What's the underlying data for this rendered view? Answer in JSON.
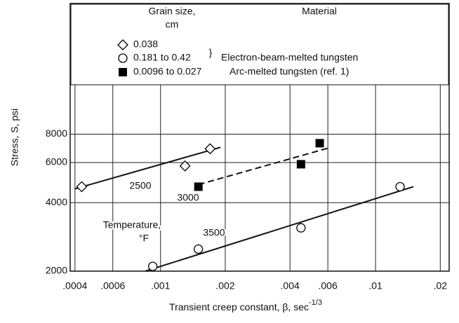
{
  "chart_data": {
    "type": "scatter",
    "x_label": "Transient creep constant, β, sec",
    "x_label_exponent": "-1/3",
    "y_label": "Stress, S, psi",
    "log_x": true,
    "log_y": true,
    "grid": true,
    "xlim": [
      0.00038,
      0.022
    ],
    "ylim": [
      2000,
      30000
    ],
    "xticks": [
      {
        "value": 0.0004,
        "label": ".0004"
      },
      {
        "value": 0.0006,
        "label": ".0006"
      },
      {
        "value": 0.001,
        "label": ".001"
      },
      {
        "value": 0.002,
        "label": ".002"
      },
      {
        "value": 0.004,
        "label": ".004"
      },
      {
        "value": 0.006,
        "label": ".006"
      },
      {
        "value": 0.01,
        "label": ".01"
      },
      {
        "value": 0.02,
        "label": ".02"
      }
    ],
    "yticks": [
      2000,
      4000,
      6000,
      8000
    ],
    "legend_headers": [
      "Grain size,",
      "cm",
      "Material"
    ],
    "materials": [
      "Electron-beam-melted tungsten",
      "Arc-melted tungsten (ref. 1)"
    ],
    "series": [
      {
        "name": "0.038",
        "marker": "diamond",
        "color": "#000",
        "x": [
          0.00043,
          0.0013,
          0.0017
        ],
        "values": [
          4700,
          5800,
          6900
        ]
      },
      {
        "name": "0.181 to 0.42",
        "marker": "circle",
        "color": "#000",
        "x": [
          0.00092,
          0.0015,
          0.0045,
          0.013
        ],
        "values": [
          2100,
          2500,
          3100,
          4700
        ]
      },
      {
        "name": "0.0096 to 0.027",
        "marker": "square",
        "color": "#000",
        "x": [
          0.0015,
          0.0045,
          0.0055
        ],
        "values": [
          4700,
          5900,
          7300
        ]
      }
    ],
    "fit_lines": [
      {
        "style": "solid",
        "x": [
          0.0004,
          0.0019
        ],
        "values": [
          4600,
          7000
        ]
      },
      {
        "style": "dashed",
        "x": [
          0.0015,
          0.0062
        ],
        "values": [
          4800,
          7000
        ]
      },
      {
        "style": "solid",
        "x": [
          0.00085,
          0.015
        ],
        "values": [
          2000,
          4700
        ]
      }
    ],
    "annotations": [
      "2500",
      "3000",
      "3500",
      "Temperature,",
      "°F"
    ]
  }
}
